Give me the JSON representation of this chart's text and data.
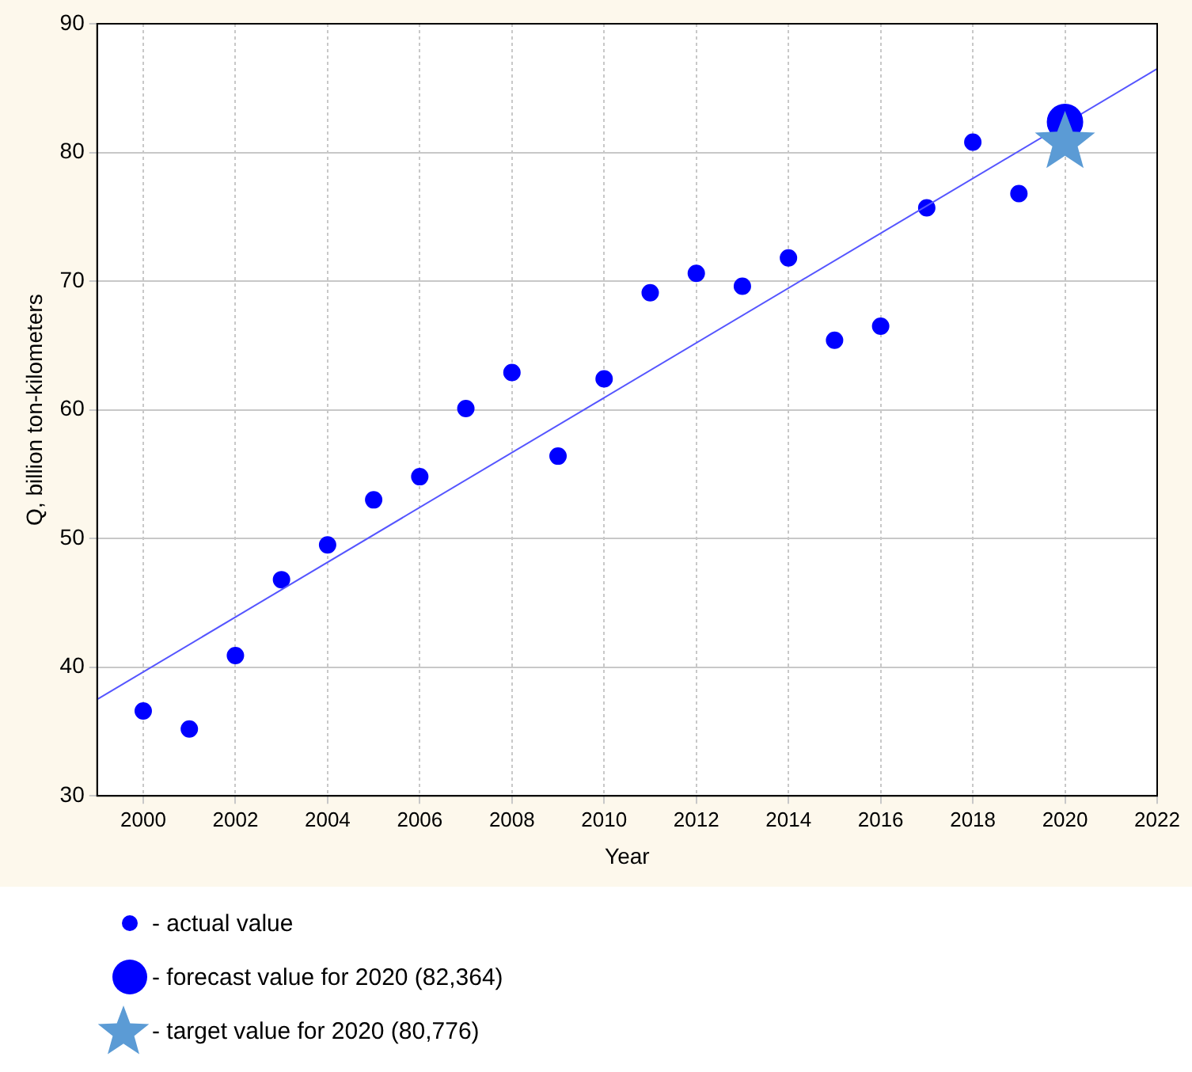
{
  "chart_data": {
    "type": "scatter",
    "xlabel": "Year",
    "ylabel": "Q, billion ton-kilometers",
    "xlim": [
      1999,
      2022
    ],
    "xticks": [
      2000,
      2002,
      2004,
      2006,
      2008,
      2010,
      2012,
      2014,
      2016,
      2018,
      2020,
      2022
    ],
    "ylim": [
      30,
      90
    ],
    "yticks": [
      30,
      40,
      50,
      60,
      70,
      80,
      90
    ],
    "grid": true,
    "legend": "bottom",
    "series": [
      {
        "name": "- actual value",
        "color": "#0000ff",
        "marker": "circle",
        "x": [
          2000,
          2001,
          2002,
          2003,
          2004,
          2005,
          2006,
          2007,
          2008,
          2009,
          2010,
          2011,
          2012,
          2013,
          2014,
          2015,
          2016,
          2017,
          2018,
          2019
        ],
        "values": [
          36.6,
          35.2,
          40.9,
          46.8,
          49.5,
          53.0,
          54.8,
          60.1,
          62.9,
          56.4,
          62.4,
          69.1,
          70.6,
          69.6,
          71.8,
          65.4,
          66.5,
          75.7,
          80.8,
          76.8
        ]
      },
      {
        "type": "line",
        "color": "#5555ff",
        "marker": "none",
        "line_style": "solid",
        "x": [
          1999,
          2022
        ],
        "values": [
          37.5,
          86.5
        ]
      },
      {
        "name": "- forecast value for 2020 (82,364)",
        "color": "#0000ff",
        "marker": "circle",
        "x": [
          2020
        ],
        "values": [
          82.364
        ]
      },
      {
        "name": "- target value for 2020 (80,776)",
        "color": "#5b9bd5",
        "marker": "star",
        "x": [
          2020
        ],
        "values": [
          80.776
        ]
      }
    ]
  }
}
